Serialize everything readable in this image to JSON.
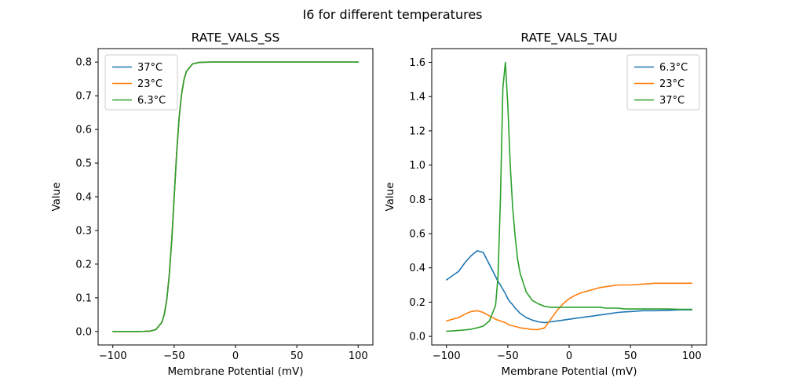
{
  "figure": {
    "title": "I6 for different temperatures"
  },
  "colors": {
    "blue": "#1f77b4",
    "orange": "#ff7f0e",
    "green": "#2ca02c",
    "legend_border": "#cccccc",
    "axis": "#000000"
  },
  "chart_data": [
    {
      "type": "line",
      "title": "RATE_VALS_SS",
      "xlabel": "Membrane Potential (mV)",
      "ylabel": "Value",
      "xlim": [
        -112,
        112
      ],
      "ylim": [
        -0.04,
        0.84
      ],
      "xticks": [
        -100,
        -50,
        0,
        50,
        100
      ],
      "yticks": [
        0.0,
        0.1,
        0.2,
        0.3,
        0.4,
        0.5,
        0.6,
        0.7,
        0.8
      ],
      "legend_position": "upper-left",
      "grid": false,
      "x": [
        -100,
        -95,
        -90,
        -85,
        -80,
        -75,
        -70,
        -65,
        -60,
        -58,
        -56,
        -54,
        -52,
        -50,
        -48,
        -46,
        -44,
        -42,
        -40,
        -35,
        -30,
        -25,
        -20,
        -15,
        -10,
        -5,
        0,
        5,
        10,
        15,
        20,
        25,
        30,
        35,
        40,
        45,
        50,
        60,
        70,
        80,
        90,
        100
      ],
      "series": [
        {
          "name": "37°C",
          "color": "#1f77b4",
          "values": [
            0,
            0,
            0,
            0,
            0.0001,
            0.0002,
            0.001,
            0.0053,
            0.0276,
            0.052,
            0.0954,
            0.1669,
            0.2714,
            0.4,
            0.5286,
            0.6331,
            0.7046,
            0.748,
            0.7724,
            0.7946,
            0.7989,
            0.7998,
            0.8,
            0.8,
            0.8,
            0.8,
            0.8,
            0.8,
            0.8,
            0.8,
            0.8,
            0.8,
            0.8,
            0.8,
            0.8,
            0.8,
            0.8,
            0.8,
            0.8,
            0.8,
            0.8,
            0.8
          ]
        },
        {
          "name": "23°C",
          "color": "#ff7f0e",
          "values": [
            0,
            0,
            0,
            0,
            0.0001,
            0.0002,
            0.001,
            0.0053,
            0.0276,
            0.052,
            0.0954,
            0.1669,
            0.2714,
            0.4,
            0.5286,
            0.6331,
            0.7046,
            0.748,
            0.7724,
            0.7946,
            0.7989,
            0.7998,
            0.8,
            0.8,
            0.8,
            0.8,
            0.8,
            0.8,
            0.8,
            0.8,
            0.8,
            0.8,
            0.8,
            0.8,
            0.8,
            0.8,
            0.8,
            0.8,
            0.8,
            0.8,
            0.8,
            0.8
          ]
        },
        {
          "name": "6.3°C",
          "color": "#2ca02c",
          "values": [
            0,
            0,
            0,
            0,
            0.0001,
            0.0002,
            0.001,
            0.0053,
            0.0276,
            0.052,
            0.0954,
            0.1669,
            0.2714,
            0.4,
            0.5286,
            0.6331,
            0.7046,
            0.748,
            0.7724,
            0.7946,
            0.7989,
            0.7998,
            0.8,
            0.8,
            0.8,
            0.8,
            0.8,
            0.8,
            0.8,
            0.8,
            0.8,
            0.8,
            0.8,
            0.8,
            0.8,
            0.8,
            0.8,
            0.8,
            0.8,
            0.8,
            0.8,
            0.8
          ]
        }
      ]
    },
    {
      "type": "line",
      "title": "RATE_VALS_TAU",
      "xlabel": "Membrane Potential (mV)",
      "ylabel": "Value",
      "xlim": [
        -112,
        112
      ],
      "ylim": [
        -0.05,
        1.68
      ],
      "xticks": [
        -100,
        -50,
        0,
        50,
        100
      ],
      "yticks": [
        0.0,
        0.2,
        0.4,
        0.6,
        0.8,
        1.0,
        1.2,
        1.4,
        1.6
      ],
      "legend_position": "upper-right",
      "grid": false,
      "x": [
        -100,
        -95,
        -90,
        -85,
        -80,
        -75,
        -70,
        -65,
        -60,
        -58,
        -56,
        -54,
        -52,
        -50,
        -48,
        -46,
        -44,
        -42,
        -40,
        -35,
        -30,
        -25,
        -20,
        -15,
        -10,
        -5,
        0,
        5,
        10,
        15,
        20,
        25,
        30,
        35,
        40,
        45,
        50,
        60,
        70,
        80,
        90,
        100
      ],
      "series": [
        {
          "name": "6.3°C",
          "color": "#1f77b4",
          "values": [
            0.33,
            0.355,
            0.38,
            0.43,
            0.47,
            0.5,
            0.49,
            0.42,
            0.35,
            0.32,
            0.3,
            0.275,
            0.25,
            0.22,
            0.2,
            0.185,
            0.165,
            0.15,
            0.135,
            0.11,
            0.095,
            0.085,
            0.08,
            0.085,
            0.09,
            0.095,
            0.1,
            0.105,
            0.11,
            0.115,
            0.12,
            0.125,
            0.13,
            0.135,
            0.14,
            0.143,
            0.145,
            0.15,
            0.15,
            0.152,
            0.155,
            0.155
          ]
        },
        {
          "name": "23°C",
          "color": "#ff7f0e",
          "values": [
            0.09,
            0.1,
            0.11,
            0.13,
            0.145,
            0.15,
            0.14,
            0.12,
            0.1,
            0.095,
            0.09,
            0.085,
            0.08,
            0.07,
            0.065,
            0.062,
            0.058,
            0.055,
            0.05,
            0.045,
            0.04,
            0.04,
            0.05,
            0.1,
            0.15,
            0.19,
            0.22,
            0.24,
            0.255,
            0.265,
            0.275,
            0.285,
            0.29,
            0.295,
            0.3,
            0.3,
            0.3,
            0.305,
            0.31,
            0.31,
            0.31,
            0.31
          ]
        },
        {
          "name": "37°C",
          "color": "#2ca02c",
          "values": [
            0.03,
            0.032,
            0.035,
            0.038,
            0.042,
            0.05,
            0.06,
            0.09,
            0.18,
            0.35,
            0.8,
            1.45,
            1.6,
            1.35,
            1.0,
            0.75,
            0.58,
            0.45,
            0.37,
            0.26,
            0.21,
            0.19,
            0.175,
            0.17,
            0.17,
            0.17,
            0.17,
            0.17,
            0.17,
            0.17,
            0.17,
            0.17,
            0.165,
            0.165,
            0.165,
            0.16,
            0.16,
            0.16,
            0.16,
            0.16,
            0.158,
            0.158
          ]
        }
      ]
    }
  ]
}
